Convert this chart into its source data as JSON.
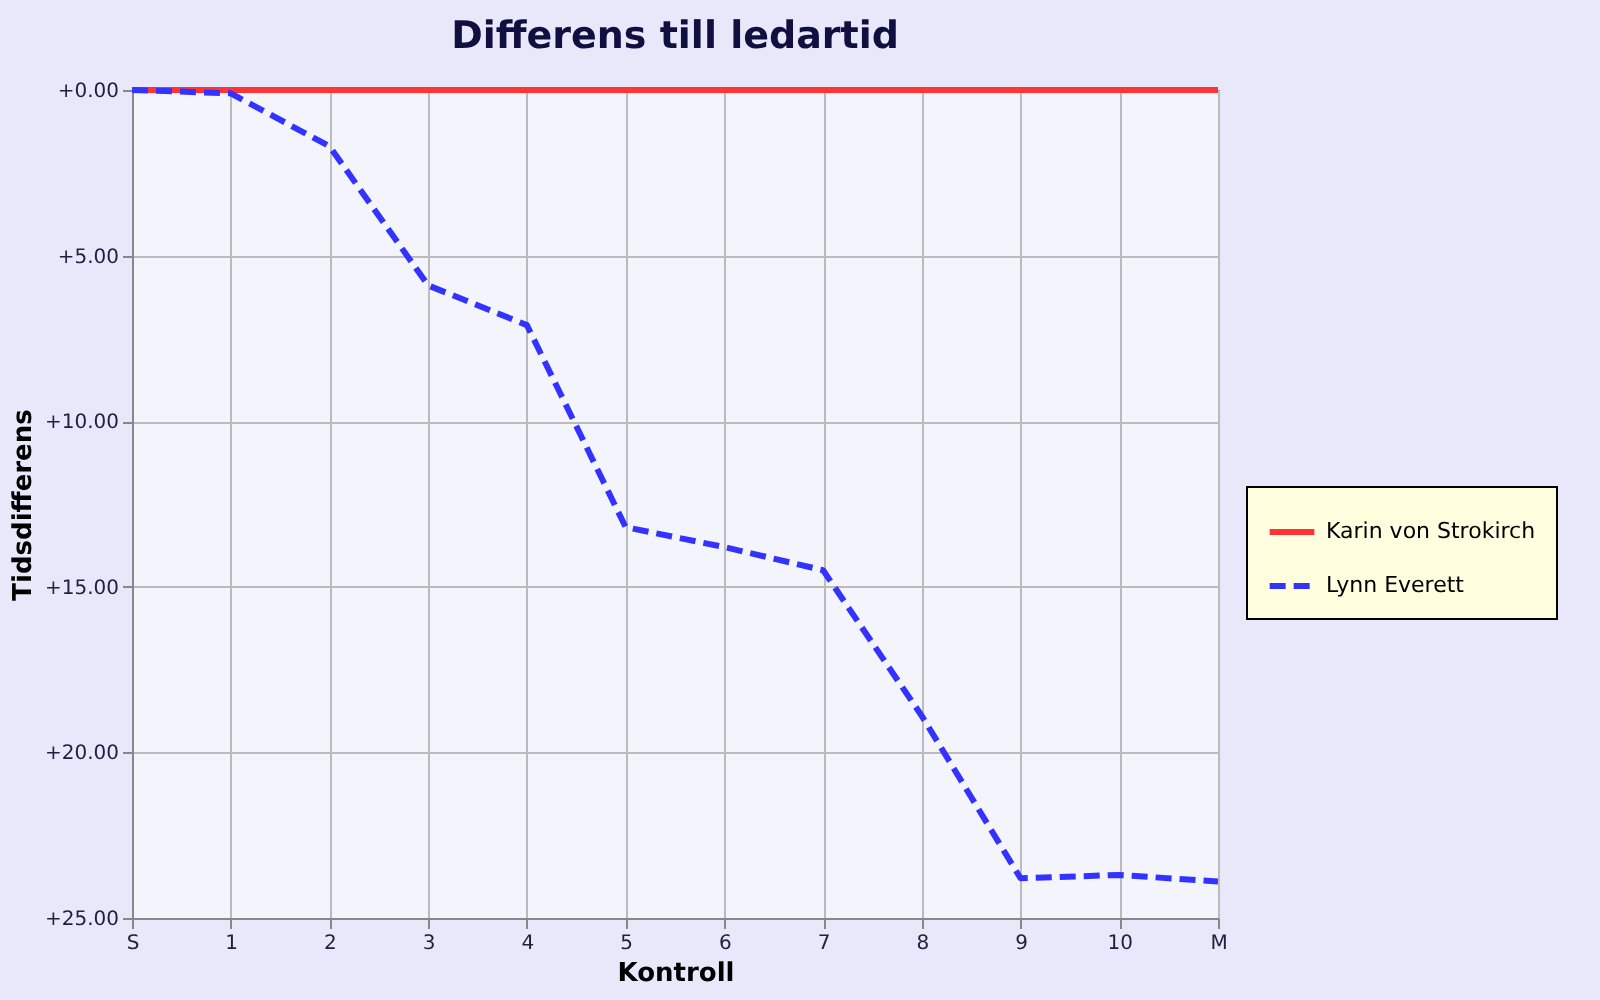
{
  "chart_data": {
    "type": "line",
    "title": "Differens till ledartid",
    "xlabel": "Kontroll",
    "ylabel": "Tidsdifferens",
    "categories": [
      "S",
      "1",
      "2",
      "3",
      "4",
      "5",
      "6",
      "7",
      "8",
      "9",
      "10",
      "M"
    ],
    "ylim": [
      25,
      0
    ],
    "yticks": [
      {
        "value": 0,
        "label": "+0.00"
      },
      {
        "value": 5,
        "label": "+5.00"
      },
      {
        "value": 10,
        "label": "+10.00"
      },
      {
        "value": 15,
        "label": "+15.00"
      },
      {
        "value": 20,
        "label": "+20.00"
      },
      {
        "value": 25,
        "label": "+25.00"
      }
    ],
    "series": [
      {
        "name": "Karin von Strokirch",
        "color": "#ff3333",
        "line_style": "solid",
        "values": [
          0,
          0,
          0,
          0,
          0,
          0,
          0,
          0,
          0,
          0,
          0,
          0
        ]
      },
      {
        "name": "Lynn Everett",
        "color": "#3333ff",
        "line_style": "dashed",
        "values": [
          0,
          0.1,
          1.7,
          5.9,
          7.1,
          13.2,
          13.8,
          14.5,
          18.9,
          23.8,
          23.7,
          23.9
        ]
      }
    ],
    "grid": true,
    "legend": "right",
    "marker": "none"
  }
}
